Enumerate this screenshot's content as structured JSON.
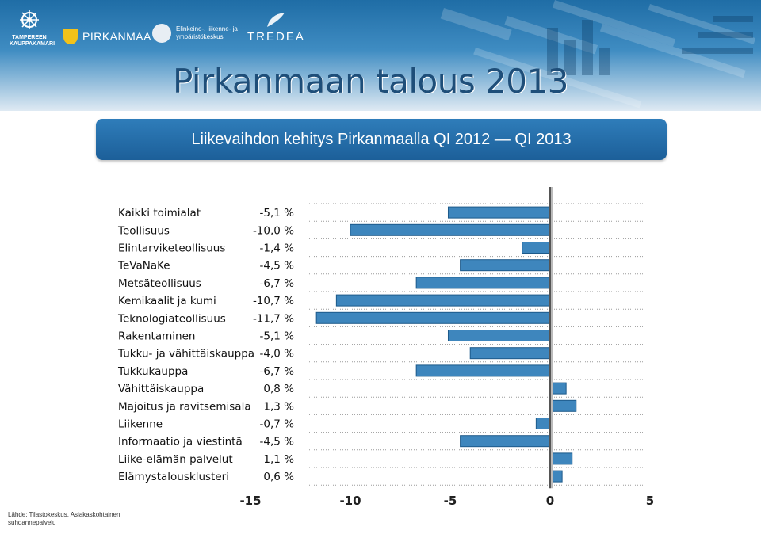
{
  "header": {
    "logos": {
      "tampere": "TAMPEREEN KAUPPAKAMARI",
      "pirkanmaa": "PIRKANMAA",
      "ely": "Elinkeino-, liikenne- ja ympäristökeskus",
      "tredea": "TREDEA"
    },
    "title": "Pirkanmaan talous 2013",
    "subtitle": "Liikevaihdon kehitys Pirkanmaalla QI 2012 — QI 2013"
  },
  "source": "Lähde: Tilastokeskus, Asiakaskohtainen suhdannepalvelu",
  "colors": {
    "bar": "#3e86bd",
    "bar_edge": "#1d5a8a",
    "title": "#1e4e79",
    "subtitle_bg": "#2a74b2",
    "text": "#111111"
  },
  "chart_data": {
    "type": "bar",
    "orientation": "horizontal",
    "categories": [
      "Kaikki toimialat",
      "Teollisuus",
      "Elintarviketeollisuus",
      "TeVaNaKe",
      "Metsäteollisuus",
      "Kemikaalit ja kumi",
      "Teknologiateollisuus",
      "Rakentaminen",
      "Tukku- ja vähittäiskauppa",
      "Tukkukauppa",
      "Vähittäiskauppa",
      "Majoitus ja ravitsemisala",
      "Liikenne",
      "Informaatio ja viestintä",
      "Liike-elämän palvelut",
      "Elämystalousklusteri"
    ],
    "values": [
      -5.1,
      -10.0,
      -1.4,
      -4.5,
      -6.7,
      -10.7,
      -11.7,
      -5.1,
      -4.0,
      -6.7,
      0.8,
      1.3,
      -0.7,
      -4.5,
      1.1,
      0.6
    ],
    "value_labels": [
      "-5,1 %",
      "-10,0 %",
      "-1,4 %",
      "-4,5 %",
      "-6,7 %",
      "-10,7 %",
      "-11,7 %",
      "-5,1 %",
      "-4,0 %",
      "-6,7 %",
      "0,8 %",
      "1,3 %",
      "-0,7 %",
      "-4,5 %",
      "1,1 %",
      "0,6 %"
    ],
    "xlim": [
      -15,
      5
    ],
    "xticks": [
      -15,
      -10,
      -5,
      0,
      5
    ],
    "xtick_labels": [
      "-15",
      "-10",
      "-5",
      "0",
      "5"
    ],
    "title": "",
    "xlabel": "",
    "ylabel": "",
    "grid": "horizontal dotted lines",
    "legend": "none"
  }
}
